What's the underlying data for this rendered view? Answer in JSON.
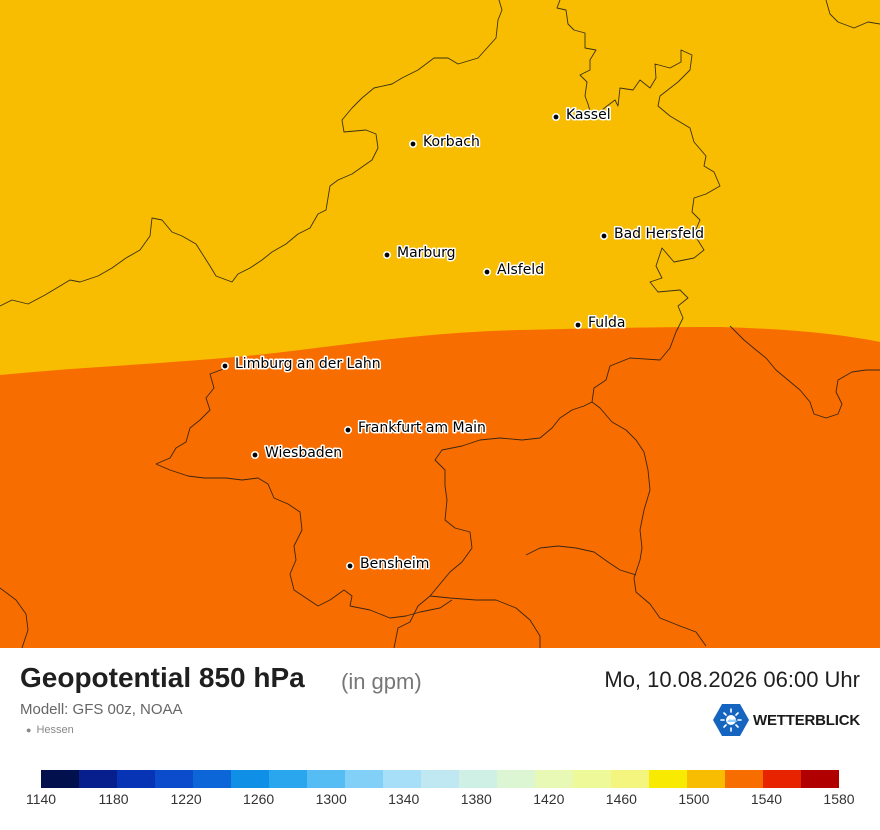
{
  "title": "Geopotential 850 hPa",
  "unit": "(in gpm)",
  "datetime": "Mo, 10.08.2026 06:00 Uhr",
  "model": "Modell: GFS 00z, NOAA",
  "region": "Hessen",
  "brand": {
    "name": "WETTERBLICK",
    "icon": "sun-icon"
  },
  "map": {
    "fields": [
      {
        "level": "1500-1520 gpm",
        "color": "#f8bd00"
      },
      {
        "level": "1520-1540 gpm",
        "color": "#f86d00"
      }
    ],
    "cities": [
      {
        "name": "Kassel"
      },
      {
        "name": "Korbach"
      },
      {
        "name": "Bad Hersfeld"
      },
      {
        "name": "Marburg"
      },
      {
        "name": "Alsfeld"
      },
      {
        "name": "Fulda"
      },
      {
        "name": "Limburg an der Lahn"
      },
      {
        "name": "Frankfurt am Main"
      },
      {
        "name": "Wiesbaden"
      },
      {
        "name": "Bensheim"
      }
    ]
  },
  "colorbar": {
    "ticks": [
      "1140",
      "1180",
      "1220",
      "1260",
      "1300",
      "1340",
      "1380",
      "1420",
      "1460",
      "1500",
      "1540",
      "1580"
    ],
    "colors": [
      "#03104e",
      "#061f8c",
      "#0634b4",
      "#0a4ccc",
      "#0d66d8",
      "#108fe6",
      "#2aa6ee",
      "#55bdf4",
      "#82cff8",
      "#a7def8",
      "#bfe8f2",
      "#cff0e4",
      "#dcf6d3",
      "#e8f9b6",
      "#eefa9a",
      "#f3f57f",
      "#f8ea00",
      "#f8bd00",
      "#f86d00",
      "#e82300",
      "#b00000"
    ]
  }
}
